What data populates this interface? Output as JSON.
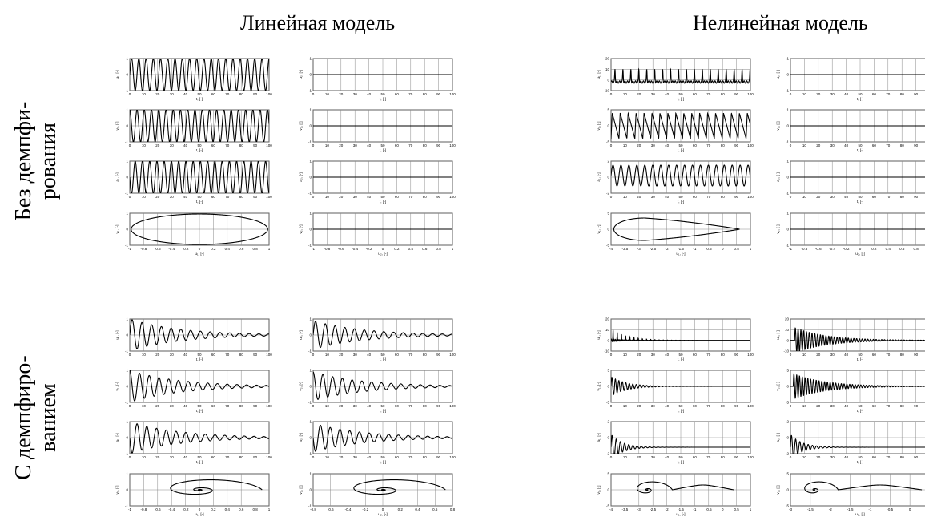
{
  "figure": {
    "columns": [
      "Линейная модель",
      "Нелинейная модель"
    ],
    "rows": [
      {
        "line1": "Без демпфи-",
        "line2": "рования"
      },
      {
        "line1": "С демпфиро-",
        "line2": "ванием"
      }
    ]
  },
  "chart_data": [
    {
      "type": "line",
      "panel": "lin-undamped-u1",
      "xlabel": "t, [-]",
      "ylabel": "u₁, [-]",
      "xlim": [
        0,
        100
      ],
      "ylim": [
        -1,
        1
      ],
      "xticks": [
        0,
        10,
        20,
        30,
        40,
        50,
        60,
        70,
        80,
        90,
        100
      ],
      "yticks": [
        -1,
        0,
        1
      ],
      "signal": {
        "kind": "sine",
        "amp": 1,
        "period": 5.2,
        "decay": 0
      }
    },
    {
      "type": "line",
      "panel": "lin-undamped-u2",
      "xlabel": "t, [-]",
      "ylabel": "u₂, [-]",
      "xlim": [
        0,
        100
      ],
      "ylim": [
        -1,
        1
      ],
      "xticks": [
        0,
        10,
        20,
        30,
        40,
        50,
        60,
        70,
        80,
        90,
        100
      ],
      "yticks": [
        -1,
        0,
        1
      ],
      "signal": {
        "kind": "zero"
      }
    },
    {
      "type": "line",
      "panel": "nonlin-undamped-u1",
      "xlabel": "t, [-]",
      "ylabel": "u₁, [-]",
      "xlim": [
        0,
        100
      ],
      "ylim": [
        -10,
        20
      ],
      "xticks": [
        0,
        10,
        20,
        30,
        40,
        50,
        60,
        70,
        80,
        90,
        100
      ],
      "yticks": [
        -10,
        0,
        10,
        20
      ],
      "signal": {
        "kind": "spike",
        "amp": 12,
        "base": -2,
        "period": 5.7,
        "decay": 0
      }
    },
    {
      "type": "line",
      "panel": "nonlin-undamped-u2",
      "xlabel": "t, [-]",
      "ylabel": "u₂, [-]",
      "xlim": [
        0,
        100
      ],
      "ylim": [
        -1,
        1
      ],
      "xticks": [
        0,
        10,
        20,
        30,
        40,
        50,
        60,
        70,
        80,
        90,
        100
      ],
      "yticks": [
        -1,
        0,
        1
      ],
      "signal": {
        "kind": "zero"
      }
    },
    {
      "type": "line",
      "panel": "lin-undamped-v1",
      "xlabel": "t, [-]",
      "ylabel": "v₁, [-]",
      "xlim": [
        0,
        100
      ],
      "ylim": [
        -1,
        1
      ],
      "xticks": [
        0,
        10,
        20,
        30,
        40,
        50,
        60,
        70,
        80,
        90,
        100
      ],
      "yticks": [
        -1,
        0,
        1
      ],
      "signal": {
        "kind": "sine",
        "amp": 1,
        "period": 5.2,
        "phase": 1.57,
        "decay": 0
      }
    },
    {
      "type": "line",
      "panel": "lin-undamped-v2",
      "xlabel": "t, [-]",
      "ylabel": "v₂, [-]",
      "xlim": [
        0,
        100
      ],
      "ylim": [
        -1,
        1
      ],
      "xticks": [
        0,
        10,
        20,
        30,
        40,
        50,
        60,
        70,
        80,
        90,
        100
      ],
      "yticks": [
        -1,
        0,
        1
      ],
      "signal": {
        "kind": "zero"
      }
    },
    {
      "type": "line",
      "panel": "nonlin-undamped-v1",
      "xlabel": "t, [-]",
      "ylabel": "v₁, [-]",
      "xlim": [
        0,
        100
      ],
      "ylim": [
        -5,
        5
      ],
      "xticks": [
        0,
        10,
        20,
        30,
        40,
        50,
        60,
        70,
        80,
        90,
        100
      ],
      "yticks": [
        -5,
        0,
        5
      ],
      "signal": {
        "kind": "saw",
        "amp": 4,
        "period": 5.7,
        "decay": 0
      }
    },
    {
      "type": "line",
      "panel": "nonlin-undamped-v2",
      "xlabel": "t, [-]",
      "ylabel": "v₂, [-]",
      "xlim": [
        0,
        100
      ],
      "ylim": [
        -1,
        1
      ],
      "xticks": [
        0,
        10,
        20,
        30,
        40,
        50,
        60,
        70,
        80,
        90,
        100
      ],
      "yticks": [
        -1,
        0,
        1
      ],
      "signal": {
        "kind": "zero"
      }
    },
    {
      "type": "line",
      "panel": "lin-undamped-a1",
      "xlabel": "t, [-]",
      "ylabel": "a₁, [-]",
      "xlim": [
        0,
        100
      ],
      "ylim": [
        -1,
        1
      ],
      "xticks": [
        0,
        10,
        20,
        30,
        40,
        50,
        60,
        70,
        80,
        90,
        100
      ],
      "yticks": [
        -1,
        0,
        1
      ],
      "signal": {
        "kind": "sine",
        "amp": 1,
        "period": 5.2,
        "phase": 3.14,
        "decay": 0
      }
    },
    {
      "type": "line",
      "panel": "lin-undamped-a2",
      "xlabel": "t, [-]",
      "ylabel": "a₂, [-]",
      "xlim": [
        0,
        100
      ],
      "ylim": [
        -1,
        1
      ],
      "xticks": [
        0,
        10,
        20,
        30,
        40,
        50,
        60,
        70,
        80,
        90,
        100
      ],
      "yticks": [
        -1,
        0,
        1
      ],
      "signal": {
        "kind": "zero"
      }
    },
    {
      "type": "line",
      "panel": "nonlin-undamped-a1",
      "xlabel": "t, [-]",
      "ylabel": "a₁, [-]",
      "xlim": [
        0,
        100
      ],
      "ylim": [
        -2,
        2
      ],
      "xticks": [
        0,
        10,
        20,
        30,
        40,
        50,
        60,
        70,
        80,
        90,
        100
      ],
      "yticks": [
        -2,
        0,
        2
      ],
      "signal": {
        "kind": "sine",
        "amp": 1.3,
        "period": 5.7,
        "offset": 0.2,
        "decay": 0
      }
    },
    {
      "type": "line",
      "panel": "nonlin-undamped-a2",
      "xlabel": "t, [-]",
      "ylabel": "a₂, [-]",
      "xlim": [
        0,
        100
      ],
      "ylim": [
        -1,
        1
      ],
      "xticks": [
        0,
        10,
        20,
        30,
        40,
        50,
        60,
        70,
        80,
        90,
        100
      ],
      "yticks": [
        -1,
        0,
        1
      ],
      "signal": {
        "kind": "zero"
      }
    },
    {
      "type": "line",
      "panel": "lin-undamped-phase1",
      "xlabel": "u₁, [-]",
      "ylabel": "v₁, [-]",
      "xlim": [
        -1,
        1
      ],
      "ylim": [
        -1,
        1
      ],
      "xticks": [
        -1,
        -0.8,
        -0.6,
        -0.4,
        -0.2,
        0,
        0.2,
        0.4,
        0.6,
        0.8,
        1
      ],
      "yticks": [
        -1,
        0,
        1
      ],
      "signal": {
        "kind": "ellipse",
        "cx": 0,
        "cy": 0,
        "rx": 0.98,
        "ry": 0.95
      }
    },
    {
      "type": "line",
      "panel": "lin-undamped-phase2",
      "xlabel": "u₂, [-]",
      "ylabel": "v₂, [-]",
      "xlim": [
        -1,
        1
      ],
      "ylim": [
        -1,
        1
      ],
      "xticks": [
        -1,
        -0.8,
        -0.6,
        -0.4,
        -0.2,
        0,
        0.2,
        0.4,
        0.6,
        0.8,
        1
      ],
      "yticks": [
        -1,
        0,
        1
      ],
      "signal": {
        "kind": "zero"
      }
    },
    {
      "type": "line",
      "panel": "nonlin-undamped-phase1",
      "xlabel": "u₁, [-]",
      "ylabel": "v₁, [-]",
      "xlim": [
        -4,
        1
      ],
      "ylim": [
        -5,
        5
      ],
      "xticks": [
        -4,
        -3.5,
        -3,
        -2.5,
        -2,
        -1.5,
        -1,
        -0.5,
        0,
        0.5,
        1
      ],
      "yticks": [
        -5,
        0,
        5
      ],
      "signal": {
        "kind": "teardrop",
        "cx": -2.8,
        "rx": 1.1,
        "ry": 3.5,
        "tip": 0.6
      }
    },
    {
      "type": "line",
      "panel": "nonlin-undamped-phase2",
      "xlabel": "u₂, [-]",
      "ylabel": "v₂, [-]",
      "xlim": [
        -1,
        1
      ],
      "ylim": [
        -1,
        1
      ],
      "xticks": [
        -1,
        -0.8,
        -0.6,
        -0.4,
        -0.2,
        0,
        0.2,
        0.4,
        0.6,
        0.8,
        1
      ],
      "yticks": [
        -1,
        0,
        1
      ],
      "signal": {
        "kind": "zero"
      }
    },
    {
      "type": "line",
      "panel": "lin-damped-u1",
      "xlabel": "t, [-]",
      "ylabel": "u₁, [-]",
      "xlim": [
        0,
        100
      ],
      "ylim": [
        -1,
        1
      ],
      "xticks": [
        0,
        10,
        20,
        30,
        40,
        50,
        60,
        70,
        80,
        90,
        100
      ],
      "yticks": [
        -1,
        0,
        1
      ],
      "signal": {
        "kind": "sine",
        "amp": 1,
        "period": 7,
        "decay": 0.028
      }
    },
    {
      "type": "line",
      "panel": "lin-damped-u2",
      "xlabel": "t, [-]",
      "ylabel": "u₂, [-]",
      "xlim": [
        0,
        100
      ],
      "ylim": [
        -1,
        1
      ],
      "xticks": [
        0,
        10,
        20,
        30,
        40,
        50,
        60,
        70,
        80,
        90,
        100
      ],
      "yticks": [
        -1,
        0,
        1
      ],
      "signal": {
        "kind": "sine",
        "amp": 0.9,
        "period": 7,
        "decay": 0.028
      }
    },
    {
      "type": "line",
      "panel": "nonlin-damped-u1",
      "xlabel": "t, [-]",
      "ylabel": "u₁, [-]",
      "xlim": [
        0,
        100
      ],
      "ylim": [
        -10,
        20
      ],
      "xticks": [
        0,
        10,
        20,
        30,
        40,
        50,
        60,
        70,
        80,
        90,
        100
      ],
      "yticks": [
        -10,
        0,
        10,
        20
      ],
      "signal": {
        "kind": "spike",
        "amp": 12,
        "base": 0,
        "period": 3,
        "decay": 0.09
      }
    },
    {
      "type": "line",
      "panel": "nonlin-damped-u2",
      "xlabel": "t, [-]",
      "ylabel": "u₂, [-]",
      "xlim": [
        0,
        100
      ],
      "ylim": [
        -10,
        20
      ],
      "xticks": [
        0,
        10,
        20,
        30,
        40,
        50,
        60,
        70,
        80,
        90,
        100
      ],
      "yticks": [
        -10,
        0,
        10,
        20
      ],
      "signal": {
        "kind": "sine",
        "amp": 12,
        "period": 2,
        "decay": 0.045,
        "delay": 3
      }
    },
    {
      "type": "line",
      "panel": "lin-damped-v1",
      "xlabel": "t, [-]",
      "ylabel": "v₁, [-]",
      "xlim": [
        0,
        100
      ],
      "ylim": [
        -1,
        1
      ],
      "xticks": [
        0,
        10,
        20,
        30,
        40,
        50,
        60,
        70,
        80,
        90,
        100
      ],
      "yticks": [
        -1,
        0,
        1
      ],
      "signal": {
        "kind": "sine",
        "amp": 1,
        "period": 7,
        "phase": 1.57,
        "decay": 0.028
      }
    },
    {
      "type": "line",
      "panel": "lin-damped-v2",
      "xlabel": "t, [-]",
      "ylabel": "v₂, [-]",
      "xlim": [
        0,
        100
      ],
      "ylim": [
        -1,
        1
      ],
      "xticks": [
        0,
        10,
        20,
        30,
        40,
        50,
        60,
        70,
        80,
        90,
        100
      ],
      "yticks": [
        -1,
        0,
        1
      ],
      "signal": {
        "kind": "sine",
        "amp": 0.9,
        "period": 7,
        "phase": 1.57,
        "decay": 0.028
      }
    },
    {
      "type": "line",
      "panel": "nonlin-damped-v1",
      "xlabel": "t, [-]",
      "ylabel": "v₁, [-]",
      "xlim": [
        0,
        100
      ],
      "ylim": [
        -5,
        5
      ],
      "xticks": [
        0,
        10,
        20,
        30,
        40,
        50,
        60,
        70,
        80,
        90,
        100
      ],
      "yticks": [
        -5,
        0,
        5
      ],
      "signal": {
        "kind": "sine",
        "amp": 3,
        "period": 2.5,
        "decay": 0.09
      }
    },
    {
      "type": "line",
      "panel": "nonlin-damped-v2",
      "xlabel": "t, [-]",
      "ylabel": "v₂, [-]",
      "xlim": [
        0,
        100
      ],
      "ylim": [
        -5,
        5
      ],
      "xticks": [
        0,
        10,
        20,
        30,
        40,
        50,
        60,
        70,
        80,
        90,
        100
      ],
      "yticks": [
        -5,
        0,
        5
      ],
      "signal": {
        "kind": "sine",
        "amp": 4,
        "period": 2,
        "decay": 0.045,
        "delay": 2
      }
    },
    {
      "type": "line",
      "panel": "lin-damped-a1",
      "xlabel": "t, [-]",
      "ylabel": "a₁, [-]",
      "xlim": [
        0,
        100
      ],
      "ylim": [
        -1,
        1
      ],
      "xticks": [
        0,
        10,
        20,
        30,
        40,
        50,
        60,
        70,
        80,
        90,
        100
      ],
      "yticks": [
        -1,
        0,
        1
      ],
      "signal": {
        "kind": "sine",
        "amp": 1,
        "period": 7,
        "phase": 3.14,
        "decay": 0.028
      }
    },
    {
      "type": "line",
      "panel": "lin-damped-a2",
      "xlabel": "t, [-]",
      "ylabel": "a₂, [-]",
      "xlim": [
        0,
        100
      ],
      "ylim": [
        -1,
        1
      ],
      "xticks": [
        0,
        10,
        20,
        30,
        40,
        50,
        60,
        70,
        80,
        90,
        100
      ],
      "yticks": [
        -1,
        0,
        1
      ],
      "signal": {
        "kind": "sine",
        "amp": 0.9,
        "period": 7,
        "phase": 3.14,
        "decay": 0.028
      }
    },
    {
      "type": "line",
      "panel": "nonlin-damped-a1",
      "xlabel": "t, [-]",
      "ylabel": "a₁, [-]",
      "xlim": [
        0,
        100
      ],
      "ylim": [
        -2,
        2
      ],
      "xticks": [
        0,
        10,
        20,
        30,
        40,
        50,
        60,
        70,
        80,
        90,
        100
      ],
      "yticks": [
        -2,
        0,
        2
      ],
      "signal": {
        "kind": "sine",
        "amp": 1.6,
        "period": 3,
        "offset": -1.2,
        "decay": 0.12
      }
    },
    {
      "type": "line",
      "panel": "nonlin-damped-a2",
      "xlabel": "t, [-]",
      "ylabel": "a₂, [-]",
      "xlim": [
        0,
        100
      ],
      "ylim": [
        -2,
        2
      ],
      "xticks": [
        0,
        10,
        20,
        30,
        40,
        50,
        60,
        70,
        80,
        90,
        100
      ],
      "yticks": [
        -2,
        0,
        2
      ],
      "signal": {
        "kind": "sine",
        "amp": 1.6,
        "period": 3,
        "offset": -1.2,
        "decay": 0.12
      }
    },
    {
      "type": "line",
      "panel": "lin-damped-phase1",
      "xlabel": "u₁, [-]",
      "ylabel": "v₁, [-]",
      "xlim": [
        -1,
        1
      ],
      "ylim": [
        -1,
        1
      ],
      "xticks": [
        -1,
        -0.8,
        -0.6,
        -0.4,
        -0.2,
        0,
        0.2,
        0.4,
        0.6,
        0.8,
        1
      ],
      "yticks": [
        -1,
        0,
        1
      ],
      "signal": {
        "kind": "spiral",
        "cx": 0,
        "rx0": 0.9,
        "ry0": 0.9,
        "turns": 12,
        "decay": 0.8
      }
    },
    {
      "type": "line",
      "panel": "lin-damped-phase2",
      "xlabel": "u₂, [-]",
      "ylabel": "v₂, [-]",
      "xlim": [
        -0.8,
        0.8
      ],
      "ylim": [
        -1,
        1
      ],
      "xticks": [
        -0.8,
        -0.6,
        -0.4,
        -0.2,
        0,
        0.2,
        0.4,
        0.6,
        0.8
      ],
      "yticks": [
        -1,
        0,
        1
      ],
      "signal": {
        "kind": "spiral",
        "cx": 0,
        "rx0": 0.72,
        "ry0": 0.9,
        "turns": 12,
        "decay": 0.8
      }
    },
    {
      "type": "line",
      "panel": "nonlin-damped-phase1",
      "xlabel": "u₁, [-]",
      "ylabel": "v₁, [-]",
      "xlim": [
        -4,
        1
      ],
      "ylim": [
        -5,
        5
      ],
      "xticks": [
        -4,
        -3.5,
        -3,
        -2.5,
        -2,
        -1.5,
        -1,
        -0.5,
        0,
        0.5,
        1
      ],
      "yticks": [
        -5,
        0,
        5
      ],
      "signal": {
        "kind": "spiral",
        "cx": -2.7,
        "rx0": 0.9,
        "ry0": 3.8,
        "turns": 14,
        "decay": 0.85,
        "tail": 0.4
      }
    },
    {
      "type": "line",
      "panel": "nonlin-damped-phase2",
      "xlabel": "u₂, [-]",
      "ylabel": "v₂, [-]",
      "xlim": [
        -3,
        0.5
      ],
      "ylim": [
        -5,
        5
      ],
      "xticks": [
        -3,
        -2.5,
        -2,
        -1.5,
        -1,
        -0.5,
        0,
        0.5
      ],
      "yticks": [
        -5,
        0,
        5
      ],
      "signal": {
        "kind": "spiral",
        "cx": -2.4,
        "rx0": 0.6,
        "ry0": 3.8,
        "turns": 10,
        "decay": 0.85,
        "tail": 0.3
      }
    }
  ]
}
